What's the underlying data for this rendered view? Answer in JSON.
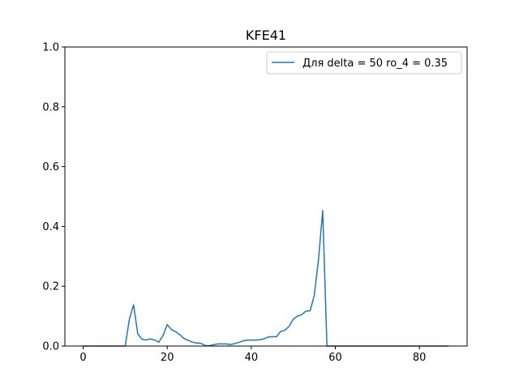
{
  "chart_data": {
    "type": "line",
    "title": "KFE41",
    "xlabel": "",
    "ylabel": "",
    "xlim": [
      -4.35,
      91.35
    ],
    "ylim": [
      0,
      1.0
    ],
    "xticks": [
      0,
      20,
      40,
      60,
      80
    ],
    "yticks": [
      0.0,
      0.2,
      0.4,
      0.6,
      0.8,
      1.0
    ],
    "xtick_labels": [
      "0",
      "20",
      "40",
      "60",
      "80"
    ],
    "ytick_labels": [
      "0.0",
      "0.2",
      "0.4",
      "0.6",
      "0.8",
      "1.0"
    ],
    "grid": false,
    "legend_position": "top-right",
    "series": [
      {
        "name": "Для delta = 50 ro_4 = 0.35",
        "color": "#1f77b4",
        "x": [
          0,
          1,
          2,
          3,
          4,
          5,
          6,
          7,
          8,
          9,
          10,
          11,
          12,
          13,
          14,
          15,
          16,
          17,
          18,
          19,
          20,
          21,
          22,
          23,
          24,
          25,
          26,
          27,
          28,
          29,
          30,
          31,
          32,
          33,
          34,
          35,
          36,
          37,
          38,
          39,
          40,
          41,
          42,
          43,
          44,
          45,
          46,
          47,
          48,
          49,
          50,
          51,
          52,
          53,
          54,
          55,
          56,
          57,
          58,
          59,
          60,
          61,
          62,
          63,
          64,
          65,
          66,
          67,
          68,
          69,
          70,
          71,
          72,
          73,
          74,
          75,
          76,
          77,
          78,
          79,
          80,
          81,
          82,
          83,
          84,
          85,
          86,
          87
        ],
        "values": [
          0,
          0,
          0,
          0,
          0,
          0,
          0,
          0,
          0,
          0,
          0,
          0.09,
          0.138,
          0.04,
          0.023,
          0.02,
          0.024,
          0.02,
          0.013,
          0.035,
          0.072,
          0.055,
          0.048,
          0.038,
          0.025,
          0.019,
          0.013,
          0.01,
          0.009,
          0.002,
          0.001,
          0.004,
          0.007,
          0.007,
          0.007,
          0.005,
          0.008,
          0.012,
          0.017,
          0.02,
          0.02,
          0.02,
          0.021,
          0.024,
          0.03,
          0.031,
          0.031,
          0.049,
          0.053,
          0.066,
          0.09,
          0.1,
          0.105,
          0.117,
          0.118,
          0.17,
          0.29,
          0.453,
          0,
          0,
          0,
          0,
          0,
          0,
          0,
          0,
          0,
          0,
          0,
          0,
          0,
          0,
          0,
          0,
          0,
          0,
          0,
          0,
          0,
          0,
          0,
          0,
          0,
          0,
          0,
          0,
          0,
          0
        ]
      }
    ]
  }
}
